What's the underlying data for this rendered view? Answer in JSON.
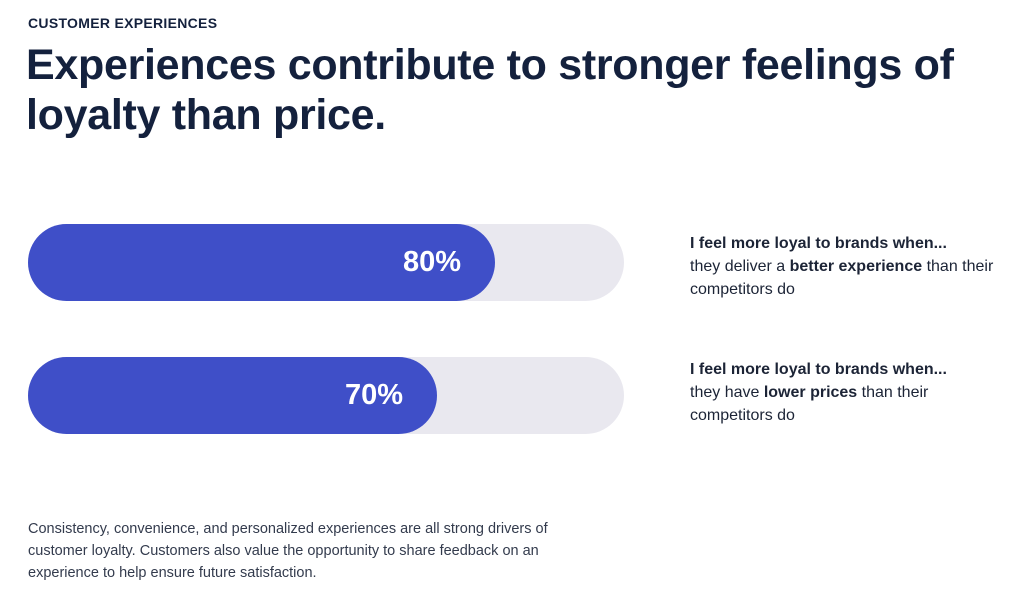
{
  "eyebrow": "CUSTOMER EXPERIENCES",
  "headline": "Experiences contribute to stronger feelings of loyalty than price.",
  "footnote": "Consistency, convenience, and personalized experiences are all strong drivers of customer loyalty. Customers also value the opportunity to share feedback on an experience to help ensure future satisfaction.",
  "colors": {
    "bar_fill": "#3f4fc8",
    "bar_track": "#e9e8ef",
    "text_dark": "#14213d"
  },
  "chart_data": {
    "type": "bar",
    "orientation": "horizontal",
    "xlim": [
      0,
      100
    ],
    "bars": [
      {
        "value": 80,
        "value_label": "80%",
        "statement_lead": "I feel more loyal to brands when...",
        "statement_pre": "they deliver a ",
        "statement_bold": "better experience",
        "statement_post": " than their competitors do"
      },
      {
        "value": 70,
        "value_label": "70%",
        "statement_lead": "I feel more loyal to brands when...",
        "statement_pre": "they have ",
        "statement_bold": "lower prices",
        "statement_post": " than their competitors do"
      }
    ]
  }
}
